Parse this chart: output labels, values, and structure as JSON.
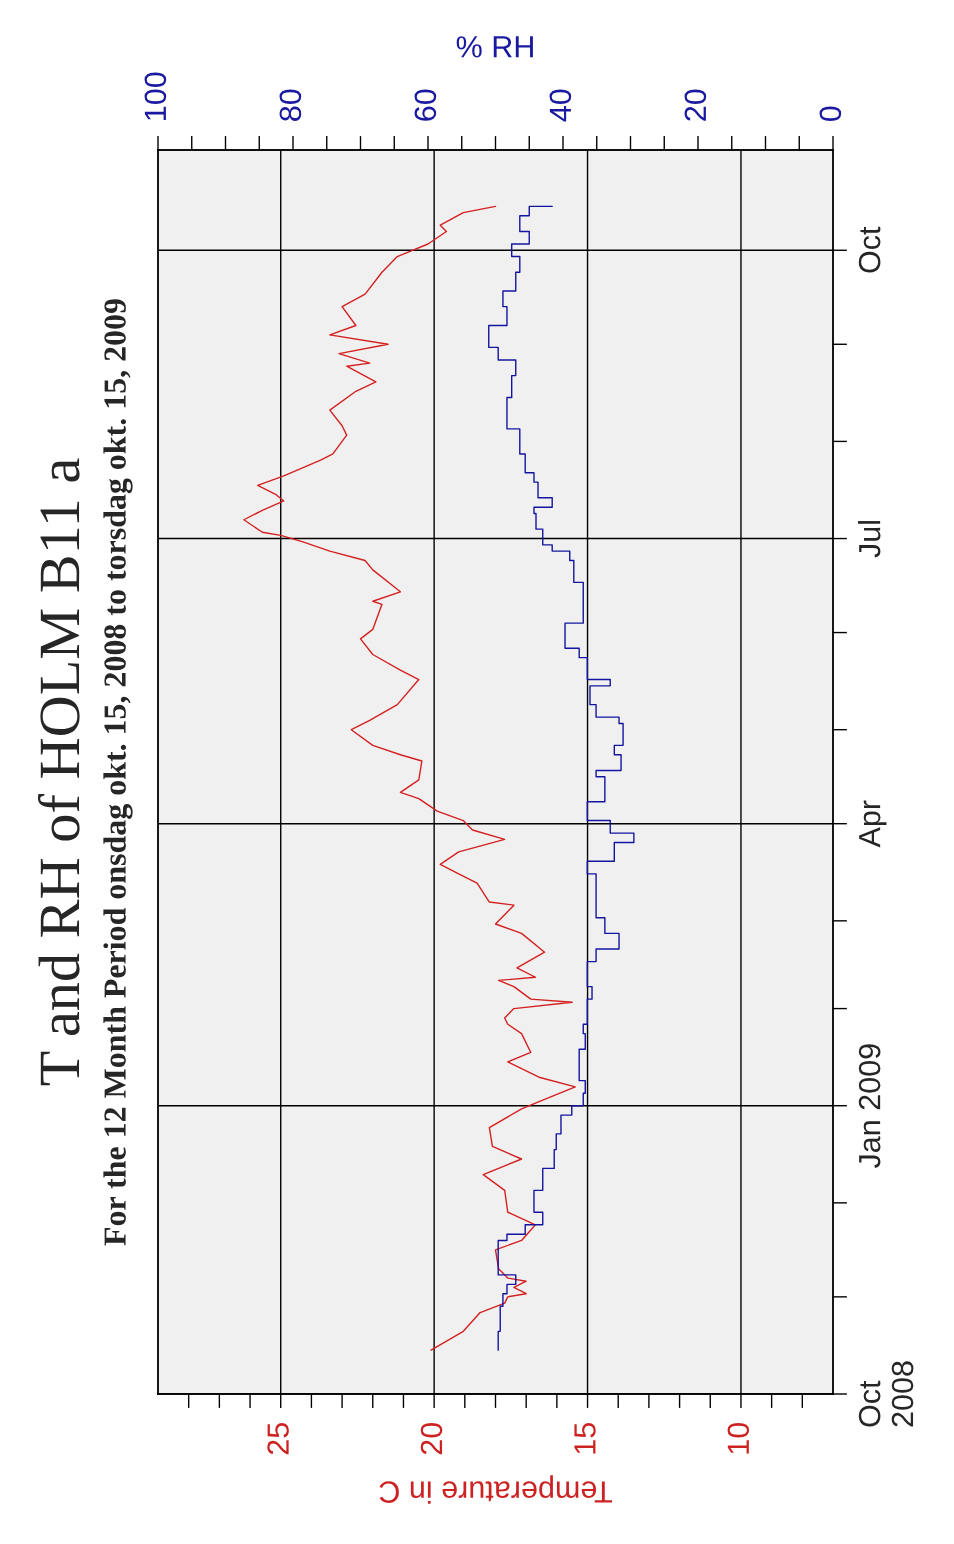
{
  "chart_data": {
    "type": "line",
    "title": "T and RH of HOLM B11 a",
    "subtitle": "For the 12 Month Period onsdag okt. 15, 2008 to torsdag okt. 15, 2009",
    "orientation": "horizontal",
    "xlabel": "Temperature in C",
    "x2label": "% RH",
    "ylim": [
      "2008-10-01",
      "2009-11-02"
    ],
    "yticks": [
      {
        "value": "2008-10-01",
        "label": "Oct\n2008"
      },
      {
        "value": "2008-11-01",
        "label": null
      },
      {
        "value": "2008-12-01",
        "label": null
      },
      {
        "value": "2009-01-01",
        "label": "Jan 2009"
      },
      {
        "value": "2009-02-01",
        "label": null
      },
      {
        "value": "2009-03-01",
        "label": null
      },
      {
        "value": "2009-04-01",
        "label": "Apr"
      },
      {
        "value": "2009-05-01",
        "label": null
      },
      {
        "value": "2009-06-01",
        "label": null
      },
      {
        "value": "2009-07-01",
        "label": "Jul"
      },
      {
        "value": "2009-08-01",
        "label": null
      },
      {
        "value": "2009-09-01",
        "label": null
      },
      {
        "value": "2009-10-01",
        "label": "Oct"
      }
    ],
    "xlim": [
      29,
      7
    ],
    "xticks": [
      {
        "value": 8,
        "label": null
      },
      {
        "value": 9,
        "label": null
      },
      10,
      {
        "value": 11,
        "label": null
      },
      {
        "value": 12,
        "label": null
      },
      {
        "value": 13,
        "label": null
      },
      {
        "value": 14,
        "label": null
      },
      15,
      {
        "value": 16,
        "label": null
      },
      {
        "value": 17,
        "label": null
      },
      {
        "value": 18,
        "label": null
      },
      {
        "value": 19,
        "label": null
      },
      20,
      {
        "value": 21,
        "label": null
      },
      {
        "value": 22,
        "label": null
      },
      {
        "value": 23,
        "label": null
      },
      {
        "value": 24,
        "label": null
      },
      25,
      {
        "value": 26,
        "label": null
      },
      {
        "value": 27,
        "label": null
      },
      {
        "value": 28,
        "label": null
      }
    ],
    "x2lim": [
      100,
      0
    ],
    "x2ticks": [
      0,
      {
        "value": 5,
        "label": null
      },
      {
        "value": 10,
        "label": null
      },
      {
        "value": 15,
        "label": null
      },
      20,
      {
        "value": 25,
        "label": null
      },
      {
        "value": 30,
        "label": null
      },
      {
        "value": 35,
        "label": null
      },
      40,
      {
        "value": 45,
        "label": null
      },
      {
        "value": 50,
        "label": null
      },
      {
        "value": 55,
        "label": null
      },
      60,
      {
        "value": 65,
        "label": null
      },
      {
        "value": 70,
        "label": null
      },
      {
        "value": 75,
        "label": null
      },
      80,
      {
        "value": 85,
        "label": null
      },
      {
        "value": 90,
        "label": null
      },
      {
        "value": 95,
        "label": null
      },
      100
    ],
    "grid": true,
    "legend": false,
    "marker": "none",
    "line_style": "solid",
    "series": [
      {
        "type": "line",
        "color": "#d42020",
        "x": [
          "2008-10-15",
          "2008-10-21",
          "2008-10-27",
          "2008-10-30",
          "2008-11-01",
          "2008-11-02",
          "2008-11-04",
          "2008-11-06",
          "2008-11-07",
          "2008-11-10",
          "2008-11-16",
          "2008-11-19",
          "2008-11-24",
          "2008-11-28",
          "2008-12-05",
          "2008-12-10",
          "2008-12-15",
          "2008-12-19",
          "2008-12-25",
          "2008-12-31",
          "2009-01-03",
          "2009-01-07",
          "2009-01-10",
          "2009-01-15",
          "2009-01-18",
          "2009-01-24",
          "2009-01-27",
          "2009-01-29",
          "2009-02-01",
          "2009-02-03",
          "2009-02-04",
          "2009-02-08",
          "2009-02-10",
          "2009-02-11",
          "2009-02-14",
          "2009-02-19",
          "2009-02-25",
          "2009-02-28",
          "2009-03-06",
          "2009-03-07",
          "2009-03-13",
          "2009-03-16",
          "2009-03-19",
          "2009-03-23",
          "2009-03-27",
          "2009-03-30",
          "2009-04-02",
          "2009-04-05",
          "2009-04-09",
          "2009-04-11",
          "2009-04-15",
          "2009-04-21",
          "2009-04-23",
          "2009-04-26",
          "2009-05-01",
          "2009-05-04",
          "2009-05-09",
          "2009-05-17",
          "2009-05-20",
          "2009-05-25",
          "2009-05-30",
          "2009-06-02",
          "2009-06-10",
          "2009-06-11",
          "2009-06-14",
          "2009-06-21",
          "2009-06-24",
          "2009-06-27",
          "2009-06-30",
          "2009-07-02",
          "2009-07-03",
          "2009-07-07",
          "2009-07-10",
          "2009-07-13",
          "2009-07-15",
          "2009-07-18",
          "2009-07-21",
          "2009-07-26",
          "2009-07-28",
          "2009-08-03",
          "2009-08-06",
          "2009-08-11",
          "2009-08-17",
          "2009-08-20",
          "2009-08-25",
          "2009-08-26",
          "2009-08-29",
          "2009-09-01",
          "2009-09-04",
          "2009-09-07",
          "2009-09-13",
          "2009-09-17",
          "2009-09-24",
          "2009-09-29",
          "2009-10-03",
          "2009-10-07",
          "2009-10-09",
          "2009-10-13",
          "2009-10-15"
        ],
        "values": [
          20.1,
          19.05,
          18.5,
          17.7,
          17.6,
          17.0,
          17.4,
          17.0,
          17.6,
          17.9,
          18.0,
          17.15,
          16.7,
          17.6,
          17.7,
          18.4,
          17.15,
          18.1,
          18.2,
          17.15,
          16.4,
          15.4,
          16.55,
          17.6,
          16.85,
          17.15,
          17.6,
          17.7,
          17.4,
          15.5,
          16.85,
          17.4,
          17.9,
          16.7,
          17.3,
          16.4,
          17.15,
          18.0,
          17.4,
          18.2,
          18.6,
          19.2,
          19.8,
          19.2,
          17.7,
          18.75,
          19.05,
          19.9,
          20.5,
          21.1,
          20.5,
          20.4,
          21.1,
          22.0,
          22.7,
          22.1,
          21.2,
          20.5,
          21.1,
          22.0,
          22.4,
          22.0,
          21.7,
          22.0,
          21.1,
          22.0,
          22.25,
          23.4,
          24.3,
          25.0,
          25.6,
          26.2,
          25.6,
          24.9,
          25.15,
          25.75,
          24.9,
          23.7,
          23.3,
          22.85,
          23.0,
          23.4,
          22.55,
          21.9,
          22.85,
          22.1,
          23.1,
          21.5,
          23.4,
          22.55,
          23.0,
          22.25,
          21.7,
          21.2,
          20.2,
          19.6,
          19.8,
          19.05,
          18.0
        ]
      },
      {
        "type": "step",
        "axis": "x2",
        "color": "#1414a0",
        "x": [
          "2008-10-15",
          "2008-10-21",
          "2008-10-29",
          "2008-11-02",
          "2008-11-05",
          "2008-11-08",
          "2008-11-13",
          "2008-11-19",
          "2008-11-21",
          "2008-11-24",
          "2008-11-28",
          "2008-12-05",
          "2008-12-09",
          "2008-12-12",
          "2008-12-18",
          "2008-12-23",
          "2008-12-29",
          "2009-01-01",
          "2009-01-05",
          "2009-01-09",
          "2009-01-14",
          "2009-01-19",
          "2009-01-24",
          "2009-01-27",
          "2009-02-04",
          "2009-02-08",
          "2009-02-16",
          "2009-02-20",
          "2009-02-25",
          "2009-03-02",
          "2009-03-12",
          "2009-03-16",
          "2009-03-20",
          "2009-03-26",
          "2009-03-29",
          "2009-04-02",
          "2009-04-08",
          "2009-04-16",
          "2009-04-18",
          "2009-04-23",
          "2009-04-26",
          "2009-05-03",
          "2009-05-05",
          "2009-05-09",
          "2009-05-15",
          "2009-05-17",
          "2009-05-24",
          "2009-05-27",
          "2009-06-04",
          "2009-06-17",
          "2009-06-24",
          "2009-06-27",
          "2009-06-29",
          "2009-07-04",
          "2009-07-09",
          "2009-07-11",
          "2009-07-14",
          "2009-07-19",
          "2009-07-22",
          "2009-07-28",
          "2009-08-03",
          "2009-08-05",
          "2009-08-15",
          "2009-08-22",
          "2009-08-27",
          "2009-08-31",
          "2009-09-07",
          "2009-09-13",
          "2009-09-18",
          "2009-09-24",
          "2009-09-29",
          "2009-10-03",
          "2009-10-07",
          "2009-10-12",
          "2009-10-15"
        ],
        "values": [
          49.6,
          49.3,
          48.9,
          48.3,
          47.0,
          49.6,
          49.6,
          48.3,
          45.6,
          43.0,
          44.3,
          43.0,
          43.0,
          41.3,
          41.0,
          40.3,
          38.7,
          37.0,
          36.7,
          37.6,
          37.6,
          36.7,
          37.0,
          36.4,
          35.7,
          36.4,
          35.1,
          31.7,
          33.8,
          35.1,
          35.1,
          36.4,
          32.4,
          29.5,
          33.0,
          36.4,
          33.8,
          35.1,
          31.4,
          32.4,
          31.1,
          31.7,
          35.1,
          36.0,
          33.0,
          36.4,
          37.6,
          39.7,
          37.0,
          38.4,
          39.0,
          41.6,
          43.0,
          44.0,
          44.3,
          41.6,
          43.7,
          44.3,
          45.6,
          46.4,
          46.4,
          48.3,
          47.6,
          47.0,
          49.6,
          51.0,
          48.3,
          48.9,
          47.0,
          46.4,
          47.6,
          45.0,
          46.4,
          45.0,
          41.6
        ]
      }
    ]
  }
}
